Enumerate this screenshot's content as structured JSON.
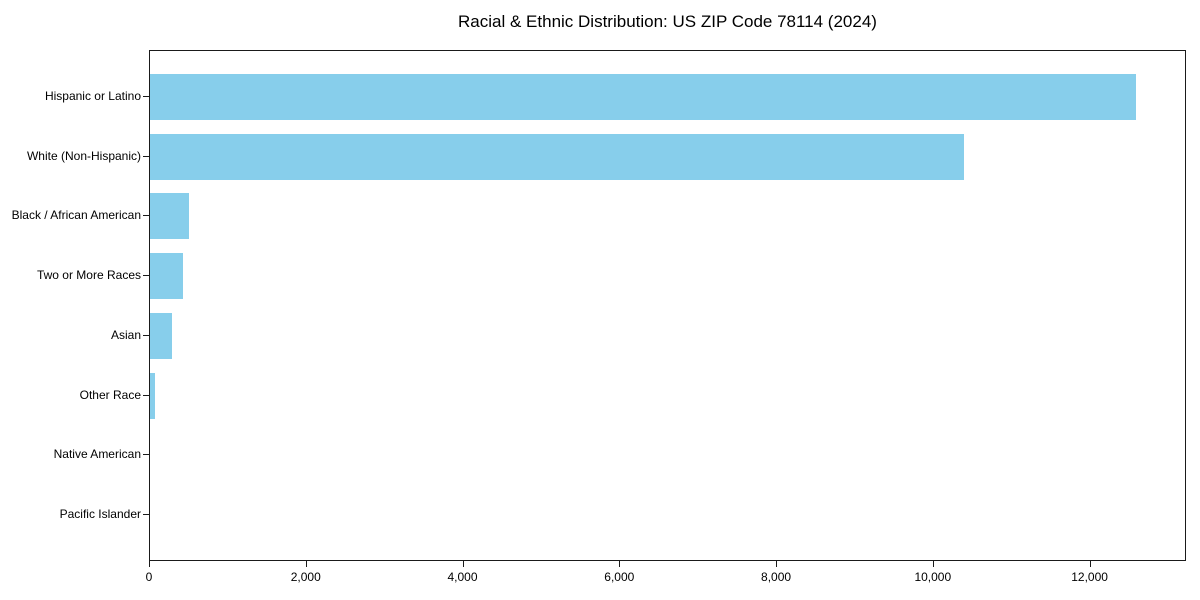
{
  "chart_data": {
    "type": "bar",
    "orientation": "horizontal",
    "title": "Racial & Ethnic Distribution: US ZIP Code 78114 (2024)",
    "categories": [
      "Hispanic or Latino",
      "White (Non-Hispanic)",
      "Black / African American",
      "Two or More Races",
      "Asian",
      "Other Race",
      "Native American",
      "Pacific Islander"
    ],
    "values": [
      12600,
      10400,
      500,
      420,
      280,
      60,
      0,
      0
    ],
    "xlabel": "",
    "ylabel": "",
    "xlim": [
      0,
      13230
    ],
    "x_ticks": [
      0,
      2000,
      4000,
      6000,
      8000,
      10000,
      12000
    ],
    "x_tick_labels": [
      "0",
      "2,000",
      "4,000",
      "6,000",
      "8,000",
      "10,000",
      "12,000"
    ],
    "bar_color": "#87CEEB",
    "frame_color": "#1a1a1a",
    "text_color": "#000000",
    "grid": false,
    "legend": "none"
  }
}
